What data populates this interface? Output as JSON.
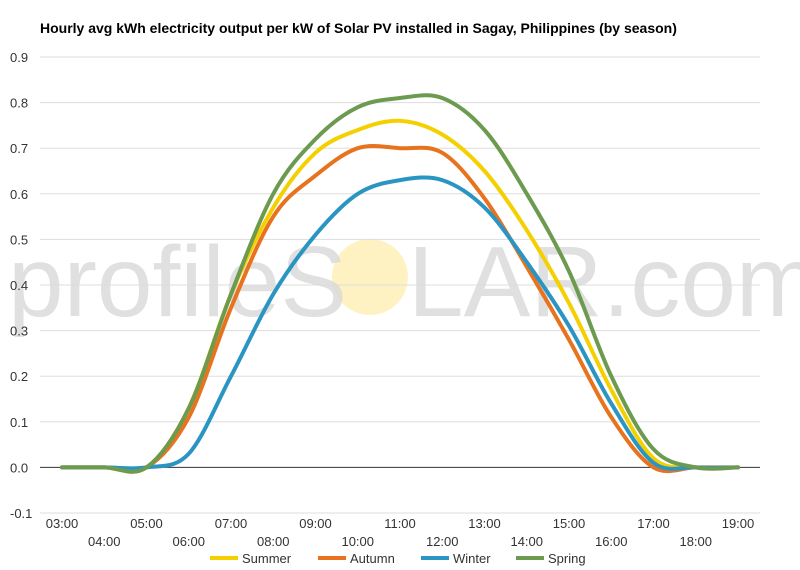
{
  "chart_data": {
    "type": "line",
    "title": "Hourly avg kWh electricity output per kW of Solar PV installed in Sagay, Philippines (by season)",
    "xlabel": "",
    "ylabel": "",
    "ylim": [
      -0.1,
      0.9
    ],
    "yticks": [
      "-0.1",
      "0.0",
      "0.1",
      "0.2",
      "0.3",
      "0.4",
      "0.5",
      "0.6",
      "0.7",
      "0.8",
      "0.9"
    ],
    "x": [
      "03:00",
      "04:00",
      "05:00",
      "06:00",
      "07:00",
      "08:00",
      "09:00",
      "10:00",
      "11:00",
      "12:00",
      "13:00",
      "14:00",
      "15:00",
      "16:00",
      "17:00",
      "18:00",
      "19:00"
    ],
    "grid": true,
    "legend": "bottom",
    "series": [
      {
        "name": "Summer",
        "color": "#f5d000",
        "values": [
          0.0,
          0.0,
          0.0,
          0.13,
          0.38,
          0.57,
          0.69,
          0.74,
          0.76,
          0.73,
          0.65,
          0.52,
          0.36,
          0.17,
          0.02,
          0.0,
          0.0
        ]
      },
      {
        "name": "Autumn",
        "color": "#e8731f",
        "values": [
          0.0,
          0.0,
          0.0,
          0.11,
          0.35,
          0.55,
          0.64,
          0.7,
          0.7,
          0.69,
          0.59,
          0.44,
          0.28,
          0.11,
          0.0,
          0.0,
          0.0
        ]
      },
      {
        "name": "Winter",
        "color": "#2a95c3",
        "values": [
          0.0,
          0.0,
          0.0,
          0.03,
          0.2,
          0.38,
          0.51,
          0.6,
          0.63,
          0.63,
          0.57,
          0.45,
          0.31,
          0.14,
          0.01,
          0.0,
          0.0
        ]
      },
      {
        "name": "Spring",
        "color": "#6c9a4f",
        "values": [
          0.0,
          0.0,
          0.0,
          0.13,
          0.38,
          0.6,
          0.72,
          0.79,
          0.81,
          0.81,
          0.74,
          0.6,
          0.43,
          0.2,
          0.04,
          0.0,
          0.0
        ]
      }
    ]
  },
  "watermark": {
    "left": "profileS",
    "right": "LAR.com",
    "sun_color": "#fff2c2"
  }
}
